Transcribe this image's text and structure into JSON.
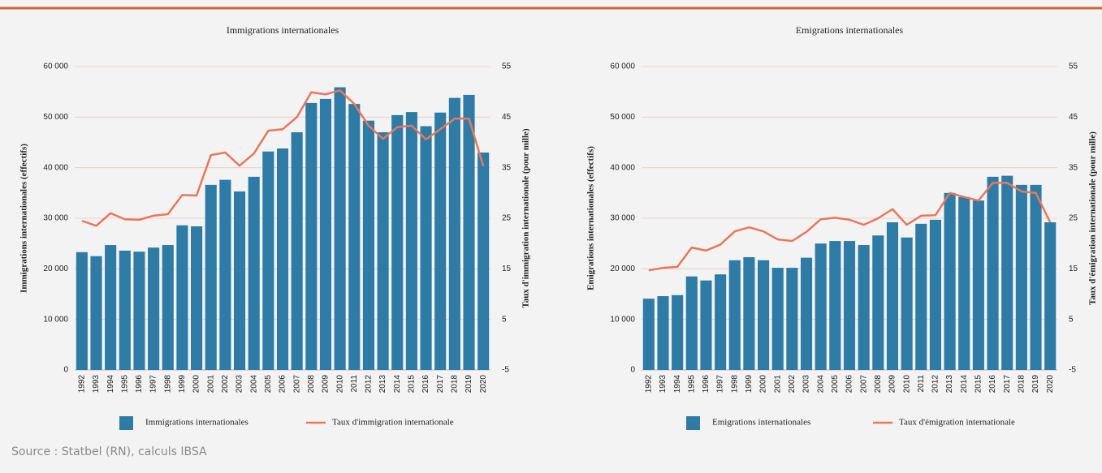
{
  "chart_data": [
    {
      "type": "bar",
      "title": "Immigrations internationales",
      "ylabel": "Immigrations internationales (effectifs)",
      "y2label": "Taux d'immigration internationale (pour mille)",
      "categories": [
        "1992",
        "1993",
        "1994",
        "1995",
        "1996",
        "1997",
        "1998",
        "1999",
        "2000",
        "2001",
        "2002",
        "2003",
        "2004",
        "2005",
        "2006",
        "2007",
        "2008",
        "2009",
        "2010",
        "2011",
        "2012",
        "2013",
        "2014",
        "2015",
        "2016",
        "2017",
        "2018",
        "2019",
        "2020"
      ],
      "series": [
        {
          "name": "Immigrations internationales",
          "color": "#2e7ca6",
          "type": "bar",
          "axis": "y",
          "values": [
            23300,
            22500,
            24700,
            23600,
            23400,
            24200,
            24700,
            28600,
            28400,
            36600,
            37600,
            35300,
            38200,
            43200,
            43800,
            47000,
            52800,
            53600,
            55900,
            52600,
            49300,
            47000,
            50400,
            51000,
            48200,
            50900,
            53800,
            54400,
            43000
          ]
        },
        {
          "name": "Taux d'immigration internationale",
          "color": "#e8785a",
          "type": "line",
          "axis": "y2",
          "values": [
            24.5,
            23.5,
            26.0,
            24.8,
            24.7,
            25.5,
            25.8,
            29.6,
            29.5,
            37.5,
            38.0,
            35.4,
            37.8,
            42.3,
            42.6,
            45.0,
            49.9,
            49.5,
            50.3,
            47.6,
            43.3,
            40.7,
            43.0,
            43.3,
            40.6,
            42.6,
            44.7,
            44.7,
            35.3
          ]
        }
      ],
      "ylim": [
        0,
        60000
      ],
      "yticks": [
        0,
        {
          "value": 10000,
          "label": "10 000"
        },
        {
          "value": 20000,
          "label": "20 000"
        },
        {
          "value": 30000,
          "label": "30 000"
        },
        {
          "value": 40000,
          "label": "40 000"
        },
        {
          "value": 50000,
          "label": "50 000"
        },
        {
          "value": 60000,
          "label": "60 000"
        }
      ],
      "y2lim": [
        -5,
        55
      ],
      "y2ticks": [
        -5,
        5,
        15,
        25,
        35,
        45,
        55
      ],
      "grid": true,
      "legend": "bottom"
    },
    {
      "type": "bar",
      "title": "Emigrations internationales",
      "ylabel": "Emigrations internationales (effectifs)",
      "y2label": "Taux d'émigration internationale (pour mille)",
      "categories": [
        "1992",
        "1993",
        "1994",
        "1995",
        "1996",
        "1997",
        "1998",
        "1999",
        "2000",
        "2001",
        "2002",
        "2003",
        "2004",
        "2005",
        "2006",
        "2007",
        "2008",
        "2009",
        "2010",
        "2011",
        "2012",
        "2013",
        "2014",
        "2015",
        "2016",
        "2017",
        "2018",
        "2019",
        "2020"
      ],
      "series": [
        {
          "name": "Emigrations internationales",
          "color": "#2e7ca6",
          "type": "bar",
          "axis": "y",
          "values": [
            14100,
            14600,
            14800,
            18500,
            17700,
            18900,
            21700,
            22300,
            21700,
            20200,
            20200,
            22200,
            25000,
            25500,
            25500,
            24700,
            26600,
            29200,
            26200,
            28900,
            29700,
            35000,
            34200,
            33500,
            38200,
            38400,
            36600,
            36600,
            29200
          ]
        },
        {
          "name": "Taux d'émigration internationale",
          "color": "#e8785a",
          "type": "line",
          "axis": "y2",
          "values": [
            14.7,
            15.2,
            15.4,
            19.2,
            18.6,
            19.8,
            22.4,
            23.2,
            22.4,
            20.8,
            20.5,
            22.3,
            24.8,
            25.1,
            24.7,
            23.7,
            25.0,
            26.8,
            23.7,
            25.5,
            25.6,
            30.0,
            29.2,
            28.5,
            32.0,
            32.0,
            30.3,
            30.0,
            24.2
          ]
        }
      ],
      "ylim": [
        0,
        60000
      ],
      "yticks": [
        0,
        {
          "value": 10000,
          "label": "10 000"
        },
        {
          "value": 20000,
          "label": "20 000"
        },
        {
          "value": 30000,
          "label": "30 000"
        },
        {
          "value": 40000,
          "label": "40 000"
        },
        {
          "value": 50000,
          "label": "50 000"
        },
        {
          "value": 60000,
          "label": "60 000"
        }
      ],
      "y2lim": [
        -5,
        55
      ],
      "y2ticks": [
        -5,
        5,
        15,
        25,
        35,
        45,
        55
      ],
      "grid": true,
      "legend": "bottom"
    }
  ],
  "source": "Source : Statbel (RN), calculs IBSA"
}
